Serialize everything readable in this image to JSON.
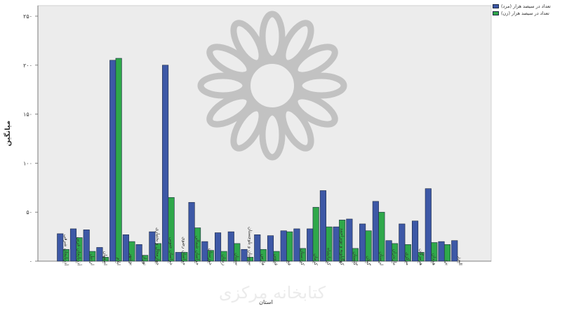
{
  "chart_data": {
    "type": "bar",
    "title": "",
    "xlabel": "استان",
    "ylabel": "میانگین",
    "ylim": [
      0,
      250
    ],
    "yticks": [
      0,
      50,
      100,
      150,
      200,
      250
    ],
    "ytick_labels": [
      "۰",
      "۵۰",
      "۱۰۰",
      "۱۵۰",
      "۲۰۰",
      "۲۵۰"
    ],
    "grid": false,
    "legend_position": "top-right",
    "categories": [
      "آذربایجان شرقی",
      "آذربایجان غربی",
      "اردبیل",
      "اصفهان",
      "ایلام",
      "بوشهر",
      "تهران",
      "چهارمحال و بختیاری",
      "خراسان جنوبی",
      "خراسان رضوی",
      "خراسان شمالی",
      "خوزستان",
      "زنجان",
      "سمنان",
      "سیستان و بلوچستان",
      "فارس",
      "قزوین",
      "قم",
      "کردستان",
      "کرمان",
      "کرمانشاه",
      "کهگیلویه و بویراحمد",
      "گلستان",
      "گیلان",
      "لرستان",
      "مازندران",
      "مرکزی",
      "هرمزگان",
      "همدان",
      "یزد",
      "البرز"
    ],
    "series": [
      {
        "name": "تعداد در سیصد هزار (مرد)",
        "color": "#3d58a6",
        "values": [
          28,
          33,
          32,
          14,
          205,
          27,
          17,
          30,
          200,
          9,
          60,
          20,
          29,
          30,
          12,
          27,
          26,
          31,
          33,
          33,
          72,
          35,
          43,
          38,
          61,
          21,
          38,
          41,
          74,
          20,
          21
        ]
      },
      {
        "name": "تعداد در سیصد هزار (زن)",
        "color": "#2fa84a",
        "values": [
          12,
          24,
          10,
          4,
          207,
          20,
          6,
          18,
          65,
          9,
          34,
          11,
          10,
          18,
          4,
          12,
          10,
          30,
          13,
          55,
          35,
          42,
          13,
          31,
          50,
          18,
          17,
          9,
          19,
          17,
          0
        ]
      }
    ]
  },
  "colors": {
    "plot_background": "#ececec",
    "bar_edge": "#1d2a44",
    "watermark": "#a0a0a0"
  },
  "watermark_text": "کتابخانه مرکزی"
}
